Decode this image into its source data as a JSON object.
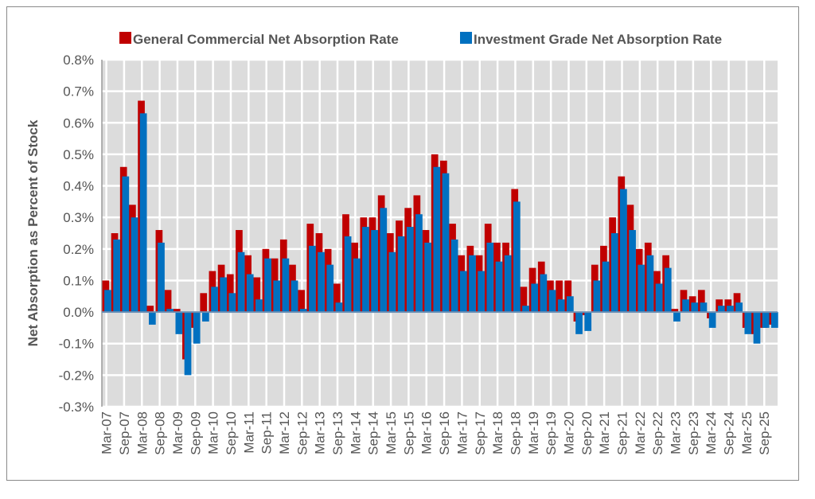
{
  "chart_data": {
    "type": "bar",
    "title": "",
    "xlabel": "",
    "ylabel": "Net Absorption as Percent of Stock",
    "ylim": [
      -0.3,
      0.8
    ],
    "yticks": [
      "-0.3%",
      "-0.2%",
      "-0.1%",
      "0.0%",
      "0.1%",
      "0.2%",
      "0.3%",
      "0.4%",
      "0.5%",
      "0.6%",
      "0.7%",
      "0.8%"
    ],
    "grid": true,
    "legend_position": "top",
    "categories": [
      "Mar-07",
      "Jun-07",
      "Sep-07",
      "Dec-07",
      "Mar-08",
      "Jun-08",
      "Sep-08",
      "Dec-08",
      "Mar-09",
      "Jun-09",
      "Sep-09",
      "Dec-09",
      "Mar-10",
      "Jun-10",
      "Sep-10",
      "Dec-10",
      "Mar-11",
      "Jun-11",
      "Sep-11",
      "Dec-11",
      "Mar-12",
      "Jun-12",
      "Sep-12",
      "Dec-12",
      "Mar-13",
      "Jun-13",
      "Sep-13",
      "Dec-13",
      "Mar-14",
      "Jun-14",
      "Sep-14",
      "Dec-14",
      "Mar-15",
      "Jun-15",
      "Sep-15",
      "Dec-15",
      "Mar-16",
      "Jun-16",
      "Sep-16",
      "Dec-16",
      "Mar-17",
      "Jun-17",
      "Sep-17",
      "Dec-17",
      "Mar-18",
      "Jun-18",
      "Sep-18",
      "Dec-18",
      "Mar-19",
      "Jun-19",
      "Sep-19",
      "Dec-19",
      "Mar-20",
      "Jun-20",
      "Sep-20",
      "Dec-20",
      "Mar-21",
      "Jun-21",
      "Sep-21",
      "Dec-21",
      "Mar-22",
      "Jun-22",
      "Sep-22",
      "Dec-22",
      "Mar-23",
      "Jun-23",
      "Sep-23",
      "Dec-23",
      "Mar-24",
      "Jun-24",
      "Sep-24",
      "Dec-24",
      "Mar-25",
      "Jun-25",
      "Sep-25",
      "Dec-25"
    ],
    "series": [
      {
        "name": "General Commercial Net Absorption Rate",
        "color": "#c00000",
        "values": [
          0.1,
          0.25,
          0.46,
          0.34,
          0.67,
          0.02,
          0.26,
          0.07,
          0.01,
          -0.15,
          -0.05,
          0.06,
          0.13,
          0.15,
          0.12,
          0.26,
          0.18,
          0.11,
          0.2,
          0.17,
          0.23,
          0.15,
          0.07,
          0.28,
          0.25,
          0.2,
          0.09,
          0.31,
          0.22,
          0.3,
          0.3,
          0.37,
          0.25,
          0.29,
          0.33,
          0.37,
          0.26,
          0.5,
          0.48,
          0.28,
          0.18,
          0.21,
          0.18,
          0.28,
          0.22,
          0.22,
          0.39,
          0.08,
          0.14,
          0.16,
          0.1,
          0.1,
          0.1,
          -0.03,
          -0.01,
          0.15,
          0.21,
          0.3,
          0.43,
          0.34,
          0.2,
          0.22,
          0.13,
          0.18,
          0.01,
          0.07,
          0.05,
          0.07,
          -0.02,
          0.04,
          0.04,
          0.06,
          -0.05,
          -0.07,
          -0.05,
          -0.04
        ]
      },
      {
        "name": "Investment Grade Net Absorption Rate",
        "color": "#0070c0",
        "values": [
          0.07,
          0.23,
          0.43,
          0.3,
          0.63,
          -0.04,
          0.22,
          0.01,
          -0.07,
          -0.2,
          -0.1,
          -0.03,
          0.08,
          0.11,
          0.06,
          0.19,
          0.12,
          0.04,
          0.17,
          0.1,
          0.17,
          0.1,
          0.01,
          0.21,
          0.19,
          0.15,
          0.03,
          0.24,
          0.17,
          0.27,
          0.26,
          0.33,
          0.19,
          0.24,
          0.27,
          0.31,
          0.22,
          0.46,
          0.44,
          0.23,
          0.13,
          0.18,
          0.13,
          0.22,
          0.16,
          0.18,
          0.35,
          0.02,
          0.09,
          0.12,
          0.07,
          0.04,
          0.05,
          -0.07,
          -0.06,
          0.1,
          0.16,
          0.25,
          0.39,
          0.26,
          0.15,
          0.18,
          0.09,
          0.14,
          -0.03,
          0.04,
          0.03,
          0.03,
          -0.05,
          0.02,
          0.02,
          0.03,
          -0.07,
          -0.1,
          -0.05,
          -0.05
        ]
      }
    ]
  }
}
